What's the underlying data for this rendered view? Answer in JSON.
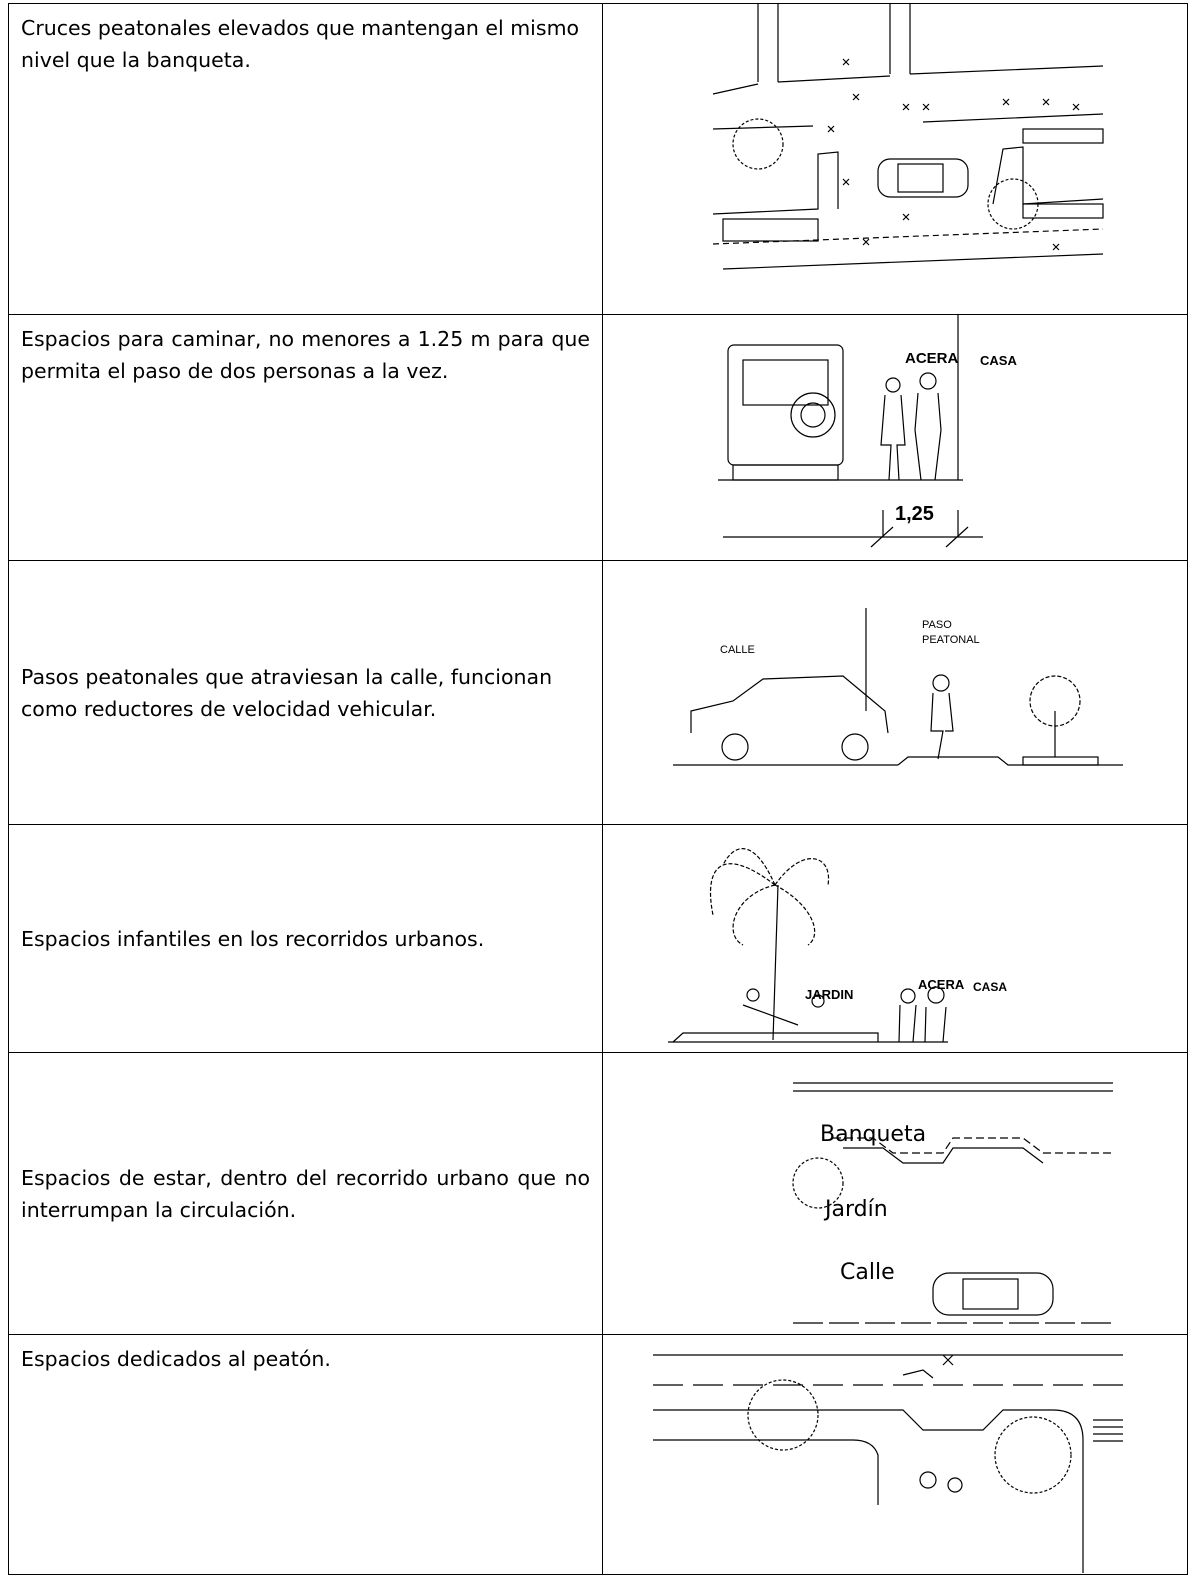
{
  "table": {
    "rows": [
      {
        "text": "Cruces peatonales elevados que mantengan el mismo nivel que la banqueta.",
        "figure_labels": []
      },
      {
        "text": "Espacios para caminar, no menores a 1.25 m para que permita el paso de dos personas a la vez.",
        "figure_labels": [
          "ACERA",
          "CASA",
          "1,25"
        ]
      },
      {
        "text": "Pasos peatonales que atraviesan la calle, funcionan como reductores de velocidad vehicular.",
        "figure_labels": [
          "CALLE",
          "PASO",
          "PEATONAL"
        ]
      },
      {
        "text": "Espacios infantiles en los recorridos urbanos.",
        "figure_labels": [
          "JARDIN",
          "ACERA",
          "CASA"
        ]
      },
      {
        "text": "Espacios de estar, dentro del recorrido urbano que no interrumpan la circulación.",
        "figure_labels": [
          "Banqueta",
          "Jardín",
          "Calle"
        ]
      },
      {
        "text": "Espacios dedicados al peatón.",
        "figure_labels": []
      }
    ]
  }
}
